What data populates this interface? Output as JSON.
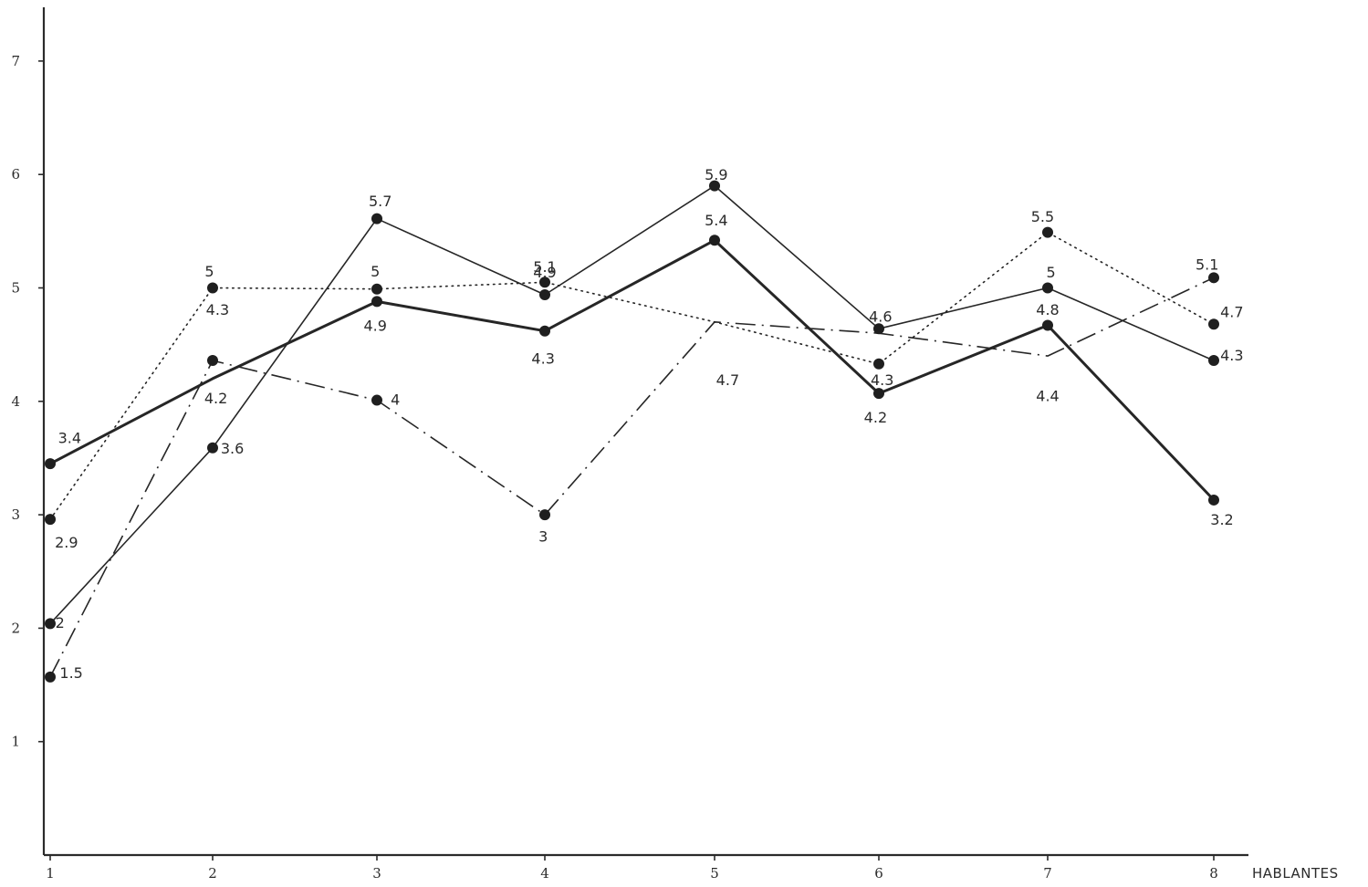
{
  "chart_data": {
    "type": "line",
    "title": "",
    "xlabel": "HABLANTES",
    "ylabel": "",
    "x": [
      1,
      2,
      3,
      4,
      5,
      6,
      7,
      8
    ],
    "ylim": [
      0,
      7
    ],
    "yticks": [
      1,
      2,
      3,
      4,
      5,
      6,
      7
    ],
    "grid": false,
    "series": [
      {
        "style": "thick-solid",
        "values": [
          3.4,
          4.2,
          4.9,
          4.3,
          5.4,
          4.2,
          4.8,
          3.2
        ]
      },
      {
        "style": "thin-solid",
        "values": [
          2,
          3.6,
          5.7,
          4.9,
          5.9,
          4.6,
          5,
          4.3
        ]
      },
      {
        "style": "dotted",
        "values": [
          2.9,
          5,
          5,
          5.1,
          4.7,
          4.3,
          5.5,
          4.7
        ]
      },
      {
        "style": "dash-dot",
        "values": [
          1.5,
          4.3,
          4,
          3,
          4.7,
          4.6,
          4.4,
          5.1
        ]
      }
    ],
    "markers": [
      {
        "series": 0,
        "x": 1,
        "y": 3.45
      },
      {
        "series": 0,
        "x": 3,
        "y": 4.88
      },
      {
        "series": 0,
        "x": 4,
        "y": 4.62
      },
      {
        "series": 0,
        "x": 5,
        "y": 5.42
      },
      {
        "series": 0,
        "x": 6,
        "y": 4.07
      },
      {
        "series": 0,
        "x": 7,
        "y": 4.67
      },
      {
        "series": 0,
        "x": 8,
        "y": 3.13
      },
      {
        "series": 1,
        "x": 1,
        "y": 2.04
      },
      {
        "series": 1,
        "x": 2,
        "y": 3.59
      },
      {
        "series": 1,
        "x": 3,
        "y": 5.61
      },
      {
        "series": 1,
        "x": 4,
        "y": 4.94
      },
      {
        "series": 1,
        "x": 5,
        "y": 5.9
      },
      {
        "series": 1,
        "x": 6,
        "y": 4.64
      },
      {
        "series": 1,
        "x": 7,
        "y": 5.0
      },
      {
        "series": 1,
        "x": 8,
        "y": 4.36
      },
      {
        "series": 2,
        "x": 1,
        "y": 2.96
      },
      {
        "series": 2,
        "x": 2,
        "y": 5.0
      },
      {
        "series": 2,
        "x": 3,
        "y": 4.99
      },
      {
        "series": 2,
        "x": 4,
        "y": 5.05
      },
      {
        "series": 2,
        "x": 6,
        "y": 4.33
      },
      {
        "series": 2,
        "x": 7,
        "y": 5.49
      },
      {
        "series": 2,
        "x": 8,
        "y": 4.68
      },
      {
        "series": 3,
        "x": 1,
        "y": 1.57
      },
      {
        "series": 3,
        "x": 2,
        "y": 4.36
      },
      {
        "series": 3,
        "x": 3,
        "y": 4.01
      },
      {
        "series": 3,
        "x": 4,
        "y": 3.0
      },
      {
        "series": 3,
        "x": 8,
        "y": 5.09
      }
    ],
    "data_labels": [
      {
        "text": "3.4",
        "x": 1.12,
        "y": 3.68
      },
      {
        "text": "4.2",
        "x": 2.02,
        "y": 4.03
      },
      {
        "text": "4.9",
        "x": 2.99,
        "y": 4.67
      },
      {
        "text": "4.3",
        "x": 3.99,
        "y": 4.38
      },
      {
        "text": "5.4",
        "x": 5.01,
        "y": 5.6
      },
      {
        "text": "4.2",
        "x": 5.98,
        "y": 3.86
      },
      {
        "text": "4.8",
        "x": 7.0,
        "y": 4.81
      },
      {
        "text": "3.2",
        "x": 8.05,
        "y": 2.96
      },
      {
        "text": "2",
        "x": 1.06,
        "y": 2.05
      },
      {
        "text": "3.6",
        "x": 2.12,
        "y": 3.59
      },
      {
        "text": "5.7",
        "x": 3.02,
        "y": 5.77
      },
      {
        "text": "4.9",
        "x": 4.0,
        "y": 5.14
      },
      {
        "text": "5.9",
        "x": 5.01,
        "y": 6.0
      },
      {
        "text": "4.6",
        "x": 6.01,
        "y": 4.75
      },
      {
        "text": "5",
        "x": 7.02,
        "y": 5.14
      },
      {
        "text": "4.3",
        "x": 8.11,
        "y": 4.41
      },
      {
        "text": "2.9",
        "x": 1.1,
        "y": 2.76
      },
      {
        "text": "5",
        "x": 1.98,
        "y": 5.15
      },
      {
        "text": "5",
        "x": 2.99,
        "y": 5.15
      },
      {
        "text": "5.1",
        "x": 4.0,
        "y": 5.19
      },
      {
        "text": "4.7",
        "x": 5.08,
        "y": 4.19
      },
      {
        "text": "4.3",
        "x": 6.02,
        "y": 4.19
      },
      {
        "text": "5.5",
        "x": 6.97,
        "y": 5.63
      },
      {
        "text": "4.7",
        "x": 8.11,
        "y": 4.79
      },
      {
        "text": "1.5",
        "x": 1.13,
        "y": 1.61
      },
      {
        "text": "4.3",
        "x": 2.03,
        "y": 4.81
      },
      {
        "text": "4",
        "x": 3.11,
        "y": 4.02
      },
      {
        "text": "3",
        "x": 3.99,
        "y": 2.81
      },
      {
        "text": "4.4",
        "x": 7.0,
        "y": 4.05
      },
      {
        "text": "5.1",
        "x": 7.96,
        "y": 5.21
      }
    ]
  }
}
